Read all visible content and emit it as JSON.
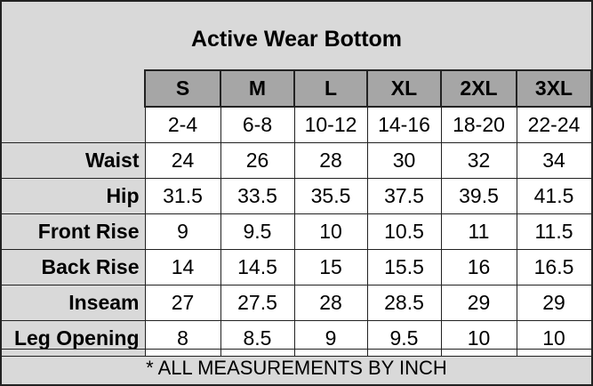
{
  "title": "Active Wear Bottom",
  "sizes": [
    "S",
    "M",
    "L",
    "XL",
    "2XL",
    "3XL"
  ],
  "ranges": [
    "2-4",
    "6-8",
    "10-12",
    "14-16",
    "18-20",
    "22-24"
  ],
  "rows": [
    {
      "label": "Waist",
      "values": [
        "24",
        "26",
        "28",
        "30",
        "32",
        "34"
      ]
    },
    {
      "label": "Hip",
      "values": [
        "31.5",
        "33.5",
        "35.5",
        "37.5",
        "39.5",
        "41.5"
      ]
    },
    {
      "label": "Front Rise",
      "values": [
        "9",
        "9.5",
        "10",
        "10.5",
        "11",
        "11.5"
      ]
    },
    {
      "label": "Back Rise",
      "values": [
        "14",
        "14.5",
        "15",
        "15.5",
        "16",
        "16.5"
      ]
    },
    {
      "label": "Inseam",
      "values": [
        "27",
        "27.5",
        "28",
        "28.5",
        "29",
        "29"
      ]
    },
    {
      "label": "Leg Opening",
      "values": [
        "8",
        "8.5",
        "9",
        "9.5",
        "10",
        "10"
      ]
    }
  ],
  "footer": "* ALL MEASUREMENTS BY INCH",
  "colors": {
    "background": "#d9d9d9",
    "header": "#a6a6a6",
    "cell": "#ffffff"
  }
}
